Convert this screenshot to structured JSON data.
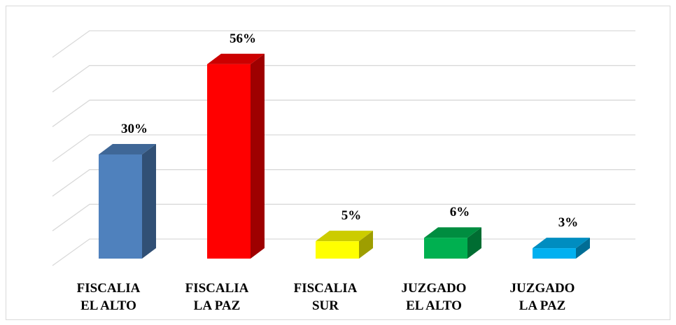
{
  "chart_data": {
    "type": "bar3d",
    "categories": [
      [
        "FISCALIA",
        "EL ALTO"
      ],
      [
        "FISCALIA",
        "LA PAZ"
      ],
      [
        "FISCALIA",
        "SUR"
      ],
      [
        "JUZGADO",
        "EL ALTO"
      ],
      [
        "JUZGADO",
        "LA PAZ"
      ]
    ],
    "values": [
      30,
      56,
      5,
      6,
      3
    ],
    "value_labels": [
      "30%",
      "56%",
      "5%",
      "6%",
      "3%"
    ],
    "colors": [
      "#4f81bd",
      "#ff0000",
      "#ffff00",
      "#00b050",
      "#00b0f0"
    ],
    "ylim": [
      0,
      60
    ],
    "yticks": [
      0,
      10,
      20,
      30,
      40,
      50,
      60
    ],
    "grid": true
  }
}
